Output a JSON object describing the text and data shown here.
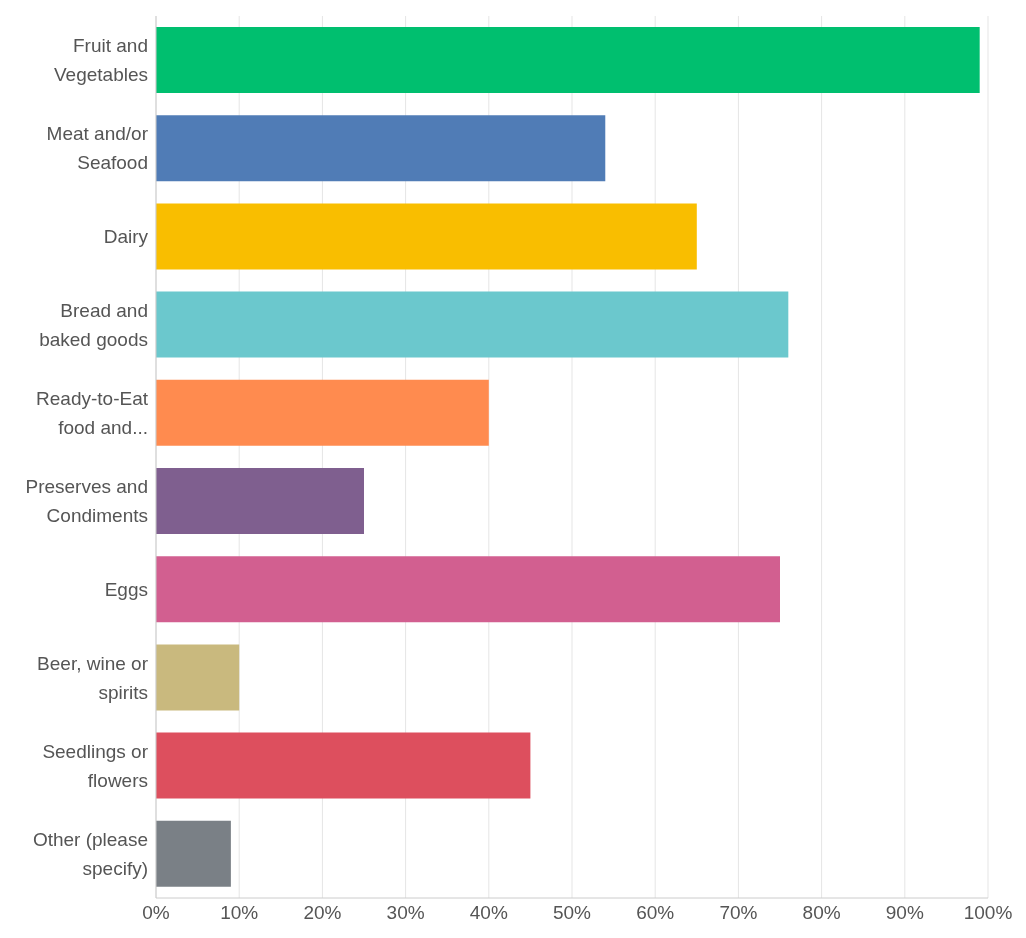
{
  "chart_data": {
    "type": "bar",
    "orientation": "horizontal",
    "categories": [
      "Fruit and Vegetables",
      "Meat and/or Seafood",
      "Dairy",
      "Bread and baked goods",
      "Ready-to-Eat food and...",
      "Preserves and Condiments",
      "Eggs",
      "Beer, wine or spirits",
      "Seedlings or flowers",
      "Other (please specify)"
    ],
    "values": [
      99,
      54,
      65,
      76,
      40,
      25,
      75,
      10,
      45,
      9
    ],
    "colors": [
      "#00bf6f",
      "#507cb6",
      "#f9be00",
      "#6bc8cd",
      "#ff8b4f",
      "#7f5f8f",
      "#d25f90",
      "#c9b97e",
      "#dd4f5e",
      "#7a8086"
    ],
    "xlim": [
      0,
      100
    ],
    "xticks": [
      {
        "value": 0,
        "label": "0%"
      },
      {
        "value": 10,
        "label": "10%"
      },
      {
        "value": 20,
        "label": "20%"
      },
      {
        "value": 30,
        "label": "30%"
      },
      {
        "value": 40,
        "label": "40%"
      },
      {
        "value": 50,
        "label": "50%"
      },
      {
        "value": 60,
        "label": "60%"
      },
      {
        "value": 70,
        "label": "70%"
      },
      {
        "value": 80,
        "label": "80%"
      },
      {
        "value": 90,
        "label": "90%"
      },
      {
        "value": 100,
        "label": "100%"
      }
    ],
    "grid": "x"
  }
}
